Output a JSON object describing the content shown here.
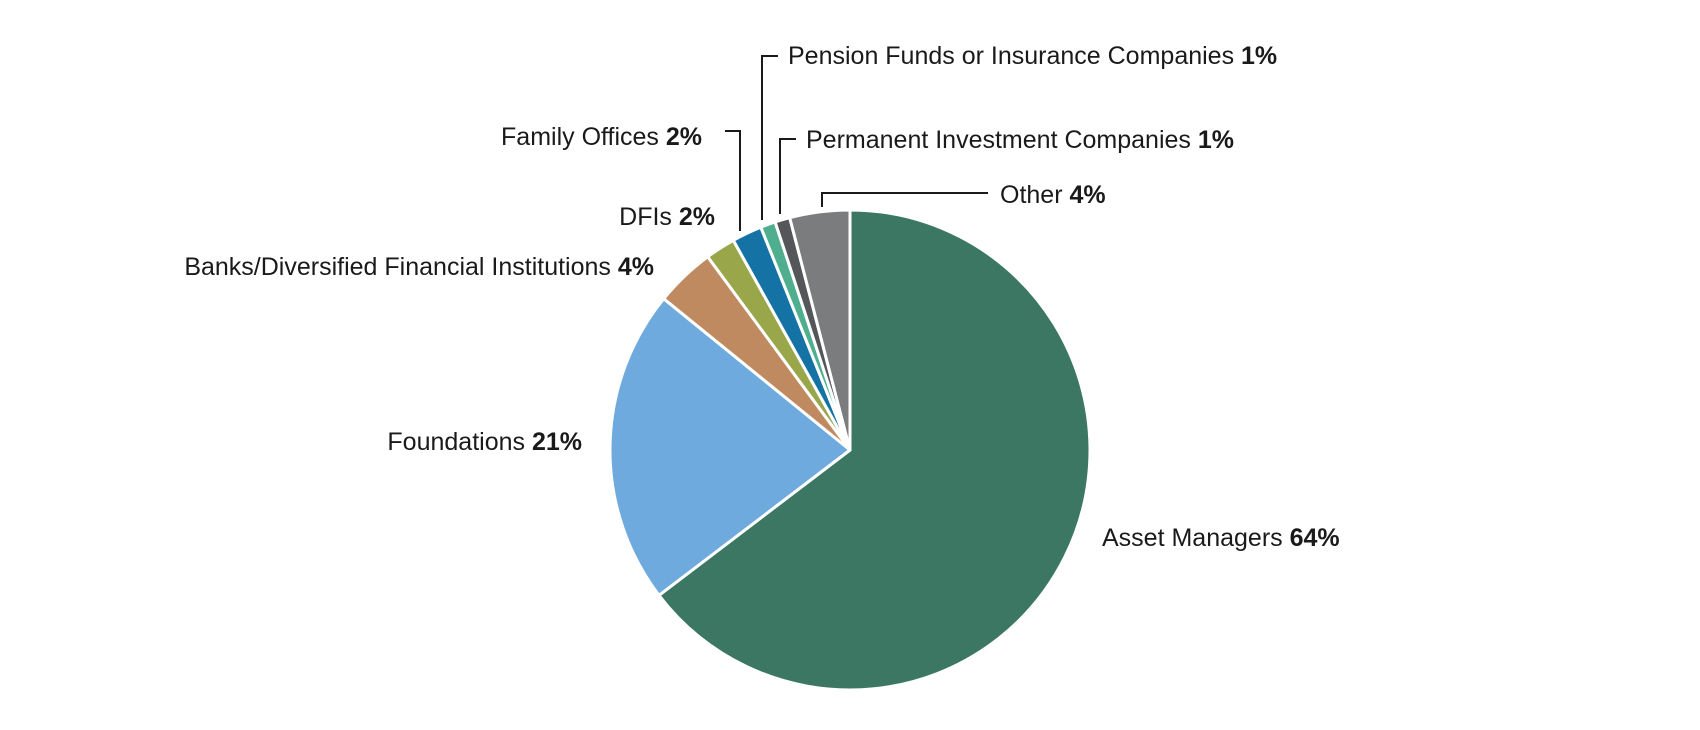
{
  "chart_data": {
    "type": "pie",
    "start_angle_deg": 0,
    "direction": "clockwise",
    "slices": [
      {
        "label": "Asset Managers",
        "value": 64,
        "display": "64%",
        "color": "#3c7764"
      },
      {
        "label": "Foundations",
        "value": 21,
        "display": "21%",
        "color": "#6eaadd"
      },
      {
        "label": "Banks/Diversified Financial Institutions",
        "value": 4,
        "display": "4%",
        "color": "#c08a60"
      },
      {
        "label": "DFIs",
        "value": 2,
        "display": "2%",
        "color": "#9aa64a"
      },
      {
        "label": "Family Offices",
        "value": 2,
        "display": "2%",
        "color": "#1572a4"
      },
      {
        "label": "Pension Funds or Insurance Companies",
        "value": 1,
        "display": "1%",
        "color": "#4fae8e"
      },
      {
        "label": "Permanent Investment Companies",
        "value": 1,
        "display": "1%",
        "color": "#54565a"
      },
      {
        "label": "Other",
        "value": 4,
        "display": "4%",
        "color": "#7b7c7e"
      }
    ]
  }
}
